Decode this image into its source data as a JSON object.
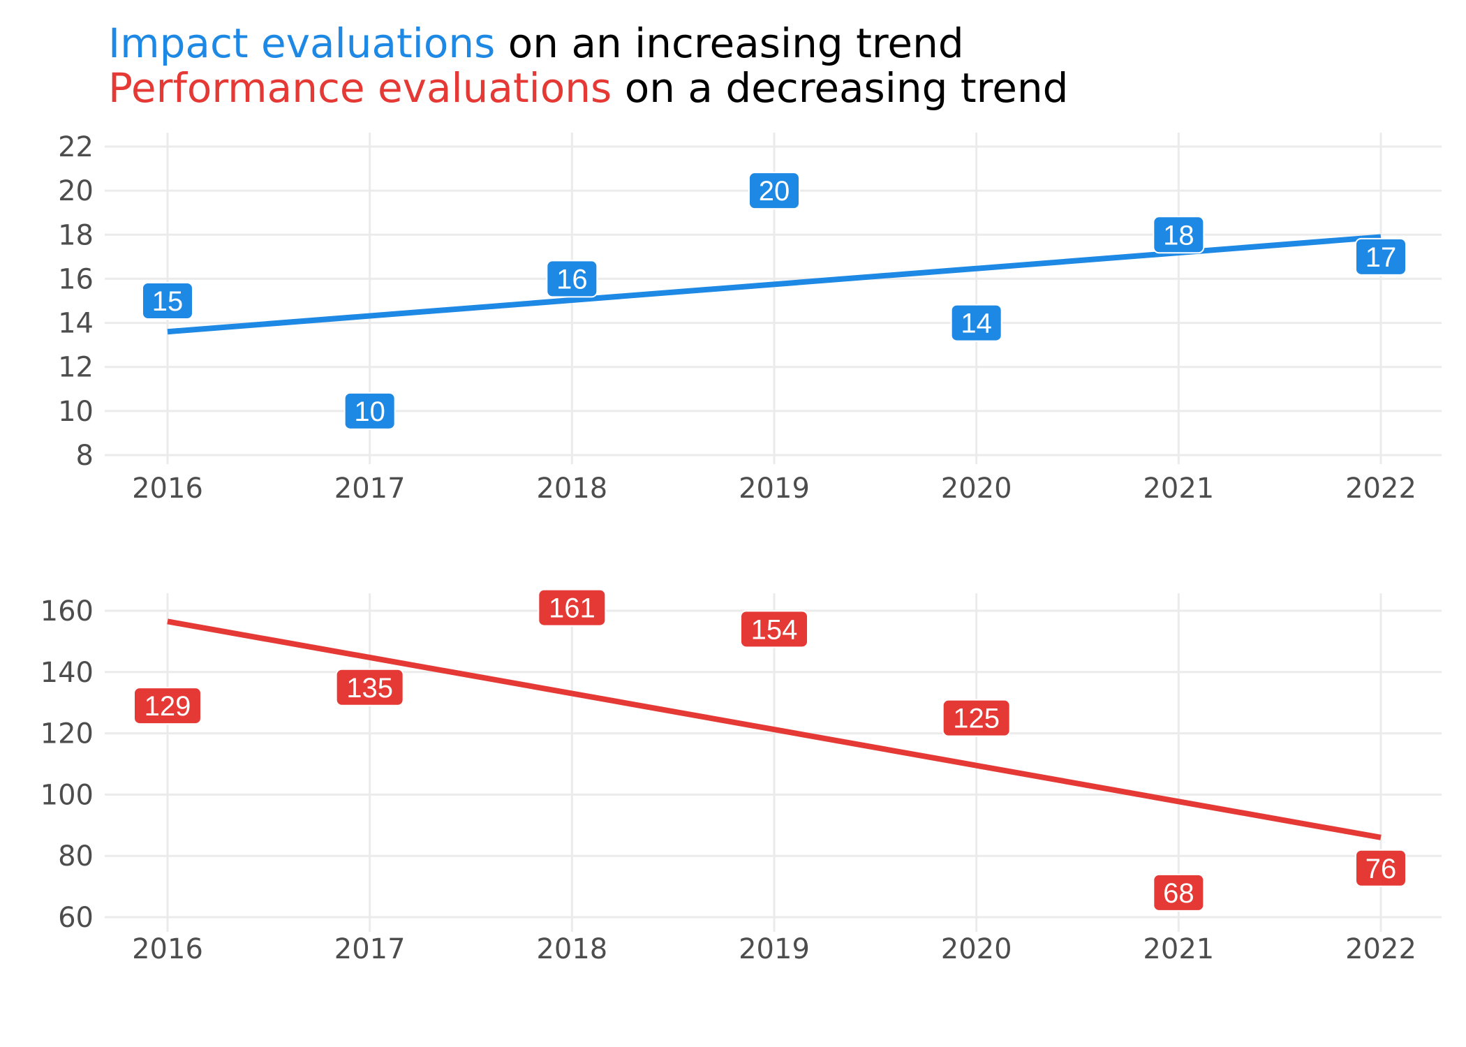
{
  "title": {
    "line1": {
      "highlight": "Impact evaluations",
      "rest": " on an increasing trend"
    },
    "line2": {
      "highlight": "Performance evaluations",
      "rest": " on a decreasing trend"
    }
  },
  "colors": {
    "impact": "#1e88e5",
    "performance": "#e53935",
    "grid": "#ebebeb",
    "tick": "#4d4d4d"
  },
  "chart_data": [
    {
      "type": "scatter",
      "name": "Impact evaluations",
      "x": [
        2016,
        2017,
        2018,
        2019,
        2020,
        2021,
        2022
      ],
      "values": [
        15,
        10,
        16,
        20,
        14,
        18,
        17
      ],
      "trend": {
        "start": [
          2016,
          13.6
        ],
        "end": [
          2022,
          17.9
        ]
      },
      "ylim": [
        8,
        22
      ],
      "yticks": [
        8,
        10,
        12,
        14,
        16,
        18,
        20,
        22
      ],
      "xticks": [
        2016,
        2017,
        2018,
        2019,
        2020,
        2021,
        2022
      ],
      "grid": true,
      "color": "#1e88e5"
    },
    {
      "type": "scatter",
      "name": "Performance evaluations",
      "x": [
        2016,
        2017,
        2018,
        2019,
        2020,
        2021,
        2022
      ],
      "values": [
        129,
        135,
        161,
        154,
        125,
        68,
        76
      ],
      "trend": {
        "start": [
          2016,
          156.5
        ],
        "end": [
          2022,
          86
        ]
      },
      "ylim": [
        60,
        160
      ],
      "yticks": [
        60,
        80,
        100,
        120,
        140,
        160
      ],
      "xticks": [
        2016,
        2017,
        2018,
        2019,
        2020,
        2021,
        2022
      ],
      "grid": true,
      "color": "#e53935"
    }
  ]
}
